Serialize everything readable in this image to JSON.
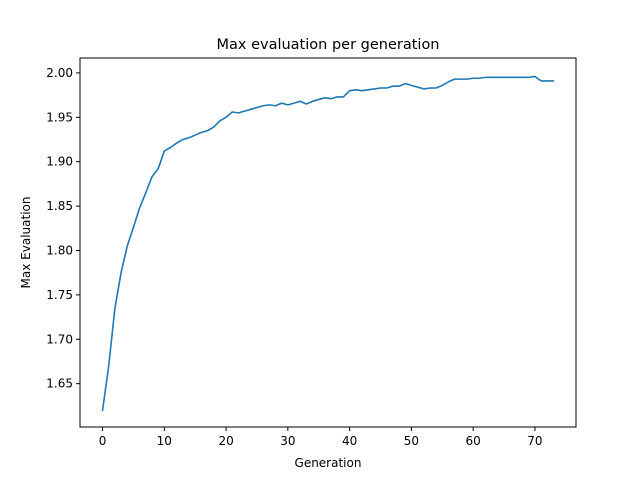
{
  "chart_data": {
    "type": "line",
    "title": "Max evaluation per generation",
    "xlabel": "Generation",
    "ylabel": "Max Evaluation",
    "xlim": [
      -3.65,
      76.65
    ],
    "ylim": [
      1.6012,
      2.0168
    ],
    "xticks": [
      0,
      10,
      20,
      30,
      40,
      50,
      60,
      70
    ],
    "yticks": [
      1.65,
      1.7,
      1.75,
      1.8,
      1.85,
      1.9,
      1.95,
      2.0
    ],
    "ytick_labels": [
      "1.65",
      "1.70",
      "1.75",
      "1.80",
      "1.85",
      "1.90",
      "1.95",
      "2.00"
    ],
    "grid": false,
    "line_color": "#1f77b4",
    "series": [
      {
        "x": [
          0,
          1,
          2,
          3,
          4,
          5,
          6,
          7,
          8,
          9,
          10,
          11,
          12,
          13,
          14,
          15,
          16,
          17,
          18,
          19,
          20,
          21,
          22,
          23,
          24,
          25,
          26,
          27,
          28,
          29,
          30,
          31,
          32,
          33,
          34,
          35,
          36,
          37,
          38,
          39,
          40,
          41,
          42,
          43,
          44,
          45,
          46,
          47,
          48,
          49,
          50,
          51,
          52,
          53,
          54,
          55,
          56,
          57,
          58,
          59,
          60,
          61,
          62,
          63,
          64,
          65,
          66,
          67,
          68,
          69,
          70,
          71,
          72,
          73
        ],
        "values": [
          1.62,
          1.67,
          1.735,
          1.775,
          1.805,
          1.826,
          1.848,
          1.865,
          1.883,
          1.892,
          1.912,
          1.916,
          1.921,
          1.925,
          1.927,
          1.93,
          1.933,
          1.935,
          1.939,
          1.946,
          1.95,
          1.956,
          1.955,
          1.957,
          1.959,
          1.961,
          1.963,
          1.964,
          1.963,
          1.966,
          1.964,
          1.966,
          1.968,
          1.965,
          1.968,
          1.97,
          1.972,
          1.971,
          1.973,
          1.973,
          1.98,
          1.981,
          1.98,
          1.981,
          1.982,
          1.983,
          1.983,
          1.985,
          1.985,
          1.988,
          1.986,
          1.984,
          1.982,
          1.983,
          1.983,
          1.986,
          1.99,
          1.993,
          1.993,
          1.993,
          1.994,
          1.994,
          1.995,
          1.995,
          1.995,
          1.995,
          1.995,
          1.995,
          1.995,
          1.995,
          1.996,
          1.991,
          1.991,
          1.991
        ]
      }
    ]
  }
}
